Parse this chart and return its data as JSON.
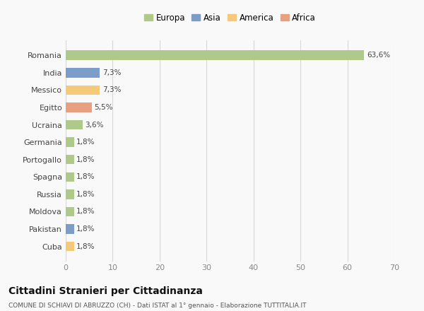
{
  "categories": [
    "Romania",
    "India",
    "Messico",
    "Egitto",
    "Ucraina",
    "Germania",
    "Portogallo",
    "Spagna",
    "Russia",
    "Moldova",
    "Pakistan",
    "Cuba"
  ],
  "values": [
    63.6,
    7.3,
    7.3,
    5.5,
    3.6,
    1.8,
    1.8,
    1.8,
    1.8,
    1.8,
    1.8,
    1.8
  ],
  "labels": [
    "63,6%",
    "7,3%",
    "7,3%",
    "5,5%",
    "3,6%",
    "1,8%",
    "1,8%",
    "1,8%",
    "1,8%",
    "1,8%",
    "1,8%",
    "1,8%"
  ],
  "colors": [
    "#aec98a",
    "#7b9dc7",
    "#f5c97a",
    "#e8a080",
    "#aec98a",
    "#aec98a",
    "#aec98a",
    "#aec98a",
    "#aec98a",
    "#aec98a",
    "#7b9dc7",
    "#f5c97a"
  ],
  "continents": [
    "Europa",
    "Asia",
    "America",
    "Africa"
  ],
  "legend_colors": [
    "#aec98a",
    "#7b9dc7",
    "#f5c97a",
    "#e8a080"
  ],
  "xlim": [
    0,
    70
  ],
  "xticks": [
    0,
    10,
    20,
    30,
    40,
    50,
    60,
    70
  ],
  "title": "Cittadini Stranieri per Cittadinanza",
  "subtitle": "COMUNE DI SCHIAVI DI ABRUZZO (CH) - Dati ISTAT al 1° gennaio - Elaborazione TUTTITALIA.IT",
  "bg_color": "#f9f9f9",
  "grid_color": "#d8d8d8",
  "bar_height": 0.55
}
